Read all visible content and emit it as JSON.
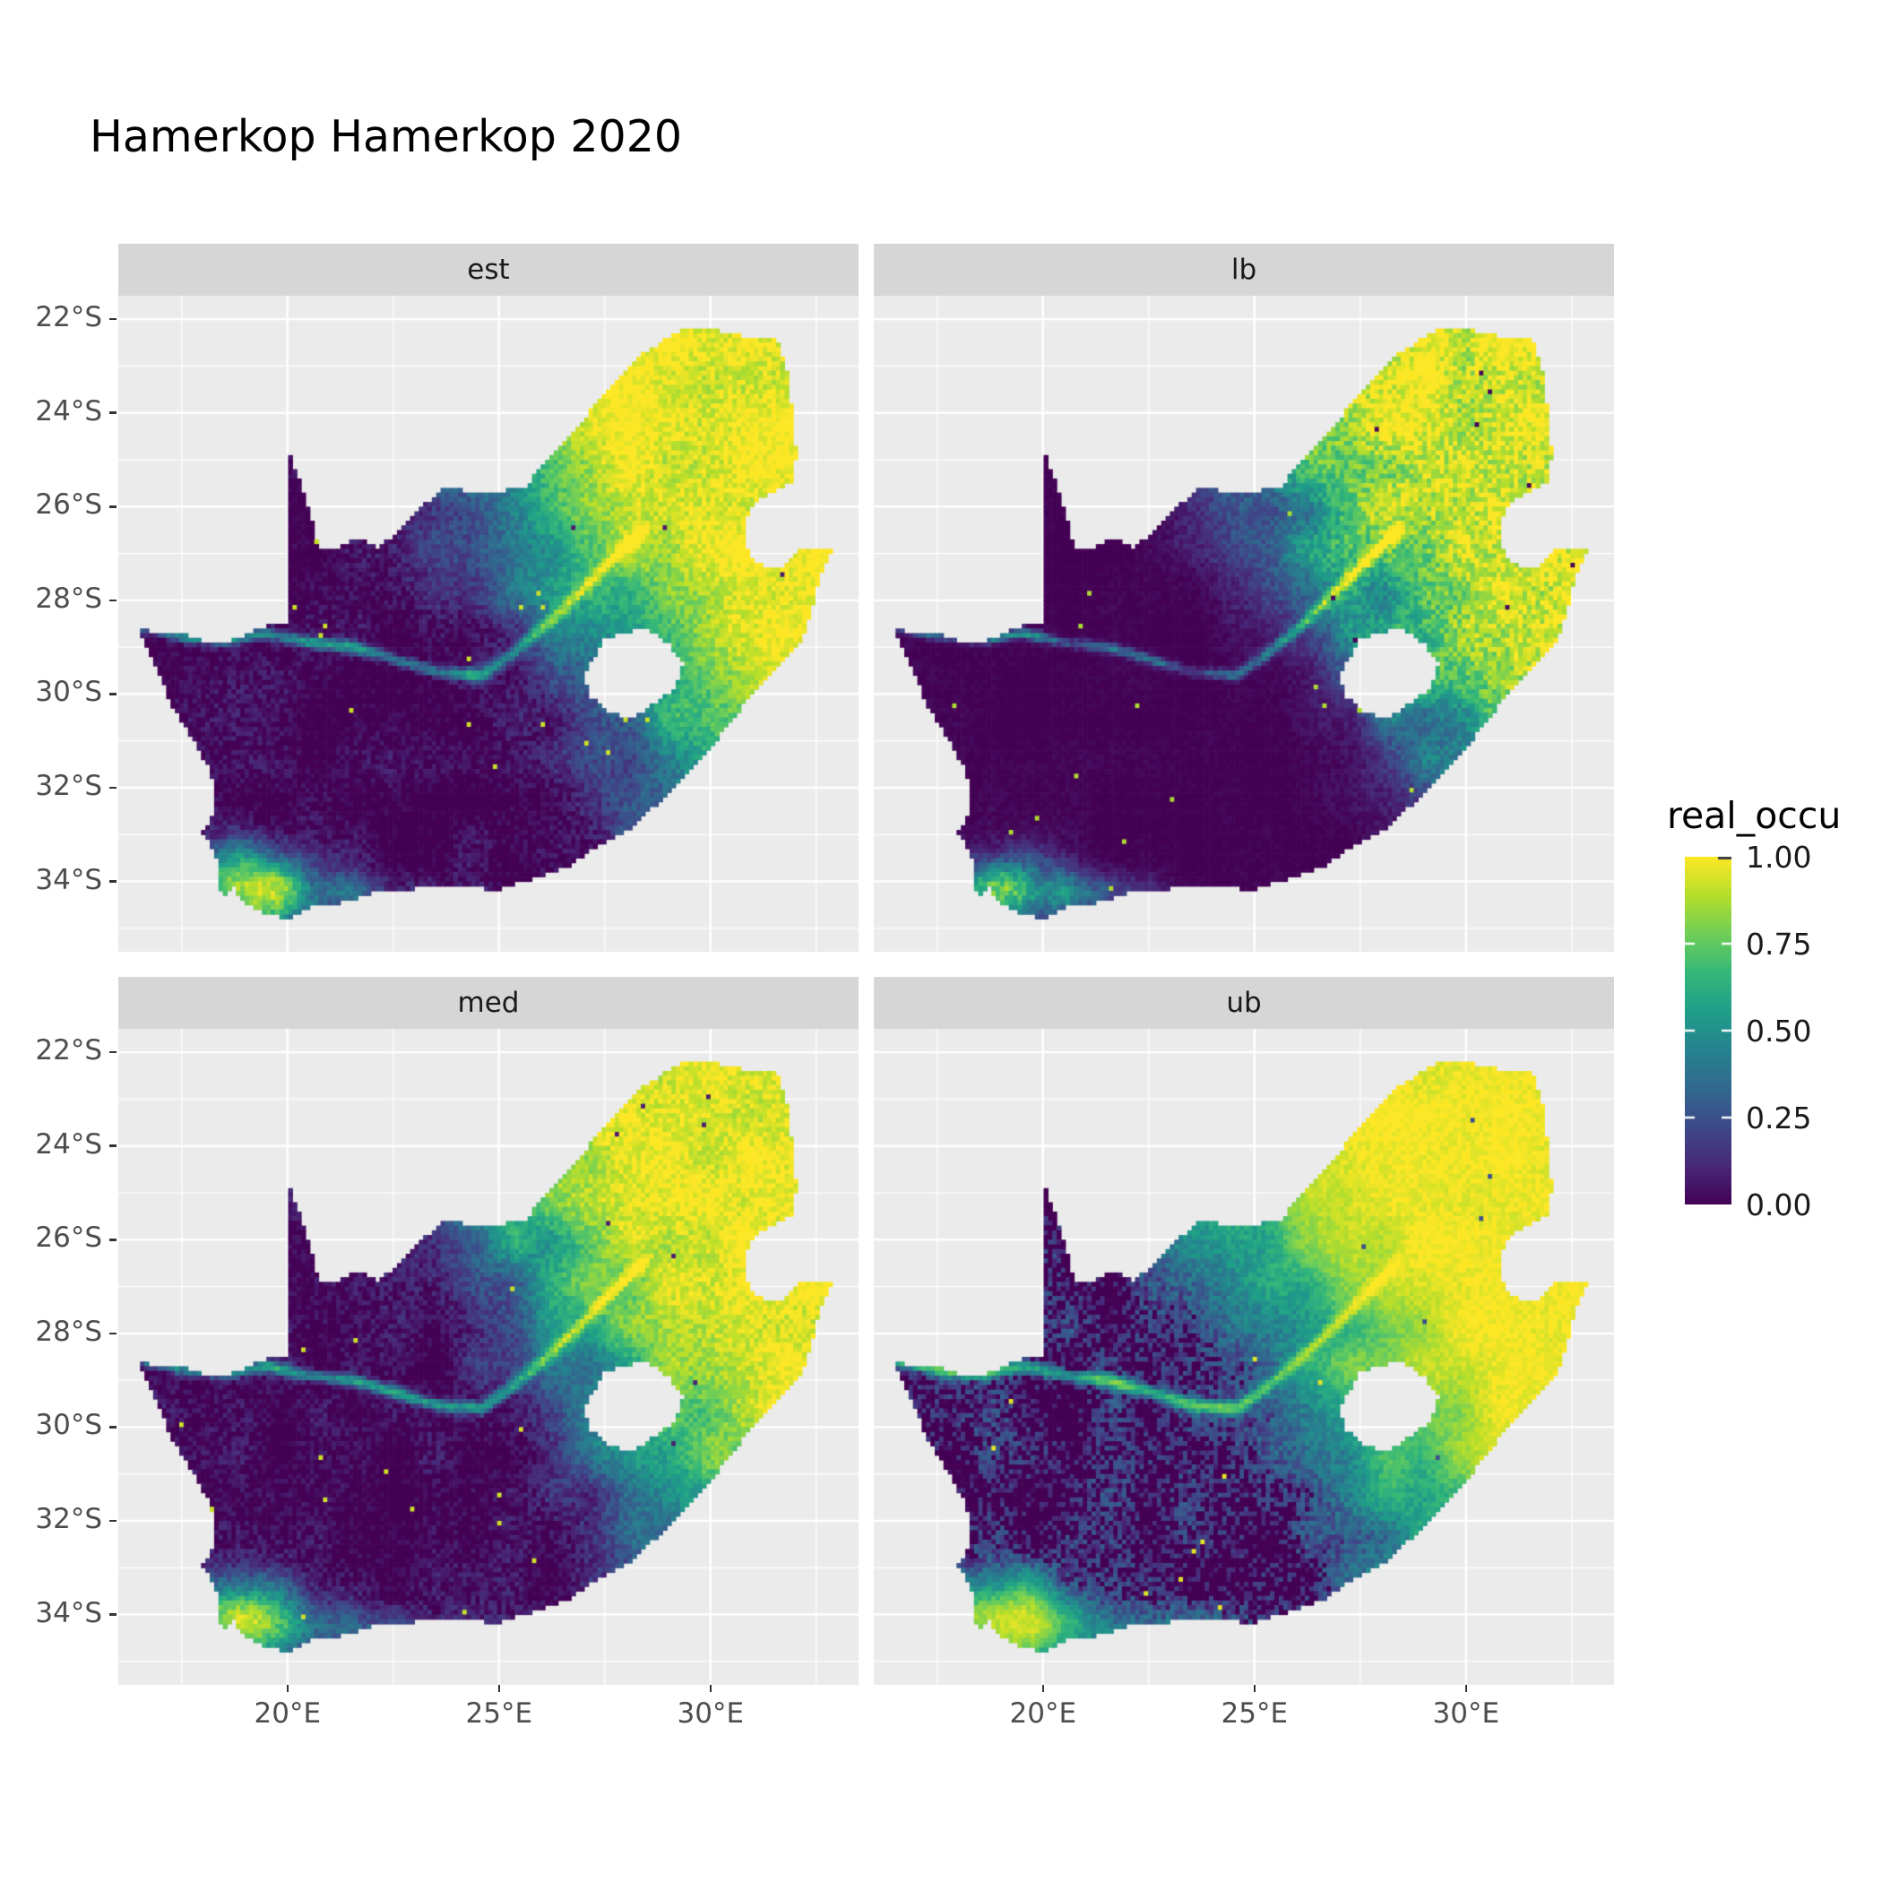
{
  "title": "Hamerkop Hamerkop 2020",
  "facets": [
    {
      "label": "est"
    },
    {
      "label": "lb"
    },
    {
      "label": "med"
    },
    {
      "label": "ub"
    }
  ],
  "axes": {
    "x_tick_labels": [
      "20°E",
      "25°E",
      "30°E"
    ],
    "y_tick_labels": [
      "22°S",
      "24°S",
      "26°S",
      "28°S",
      "30°S",
      "32°S",
      "34°S"
    ]
  },
  "legend": {
    "title": "real_occu",
    "tick_labels": [
      "1.00",
      "0.75",
      "0.50",
      "0.25",
      "0.00"
    ]
  },
  "colors": {
    "panel_bg": "#ebebeb",
    "strip_bg": "#d6d6d6",
    "gridline": "#ffffff",
    "axis_text": "#4d4d4d",
    "strip_text": "#1a1a1a",
    "title_text": "#000000",
    "tick_mark": "#333333"
  },
  "chart_data": {
    "type": "heatmap",
    "title": "Hamerkop Hamerkop 2020",
    "region": "South Africa occupancy raster, 2x2 facet grid (estimate, lower bound, median, upper bound)",
    "facets": [
      "est",
      "lb",
      "med",
      "ub"
    ],
    "x": {
      "label": "",
      "ticks_deg_east": [
        20,
        25,
        30
      ],
      "minor_deg_east": [
        17.5,
        22.5,
        27.5,
        32.5
      ],
      "range_deg_east": [
        16,
        33.5
      ]
    },
    "y": {
      "label": "",
      "ticks_deg_south": [
        22,
        24,
        26,
        28,
        30,
        32,
        34
      ],
      "minor_deg_south": [
        23,
        25,
        27,
        29,
        31,
        33,
        35
      ],
      "range_deg_south": [
        21.5,
        35.5
      ]
    },
    "legend": {
      "title": "real_occu",
      "breaks": [
        1.0,
        0.75,
        0.5,
        0.25,
        0.0
      ],
      "range": [
        0,
        1
      ]
    },
    "colormap": {
      "name": "viridis",
      "stops": [
        [
          0,
          "#440154"
        ],
        [
          0.111,
          "#482878"
        ],
        [
          0.222,
          "#3e4989"
        ],
        [
          0.333,
          "#31688e"
        ],
        [
          0.444,
          "#26828e"
        ],
        [
          0.556,
          "#1f9e89"
        ],
        [
          0.667,
          "#35b779"
        ],
        [
          0.778,
          "#6ece58"
        ],
        [
          0.889,
          "#b5de2b"
        ],
        [
          1,
          "#fde725"
        ]
      ]
    },
    "facet_gamma": {
      "est": 1.0,
      "lb": 1.6,
      "med": 0.95,
      "ub": 0.55
    },
    "pattern_summary": "real_occu near 0 (dark purple) across arid west and Karoo; high 0.8-1.0 (yellow) in northeast lowveld, highveld and along the east coast; bright patch at the southwest Cape and along the south coast; green Orange/Vaal river trace through the dark interior; scattered bright specks; ub facet brightest, lb darkest, est and med intermediate",
    "outline_lonlat": [
      [
        16.45,
        -28.58
      ],
      [
        17.05,
        -28.72
      ],
      [
        17.65,
        -28.74
      ],
      [
        18.05,
        -28.88
      ],
      [
        18.55,
        -28.9
      ],
      [
        19.0,
        -28.74
      ],
      [
        19.55,
        -28.52
      ],
      [
        19.99,
        -28.45
      ],
      [
        19.99,
        -24.77
      ],
      [
        20.25,
        -25.35
      ],
      [
        20.45,
        -25.95
      ],
      [
        20.62,
        -26.45
      ],
      [
        20.72,
        -26.88
      ],
      [
        21.15,
        -26.87
      ],
      [
        21.65,
        -26.68
      ],
      [
        22.15,
        -26.88
      ],
      [
        22.65,
        -26.5
      ],
      [
        23.15,
        -26.0
      ],
      [
        23.8,
        -25.56
      ],
      [
        24.45,
        -25.75
      ],
      [
        25.05,
        -25.67
      ],
      [
        25.62,
        -25.6
      ],
      [
        26.0,
        -25.1
      ],
      [
        26.45,
        -24.65
      ],
      [
        26.85,
        -24.3
      ],
      [
        27.2,
        -23.9
      ],
      [
        27.7,
        -23.35
      ],
      [
        28.25,
        -22.8
      ],
      [
        28.9,
        -22.45
      ],
      [
        29.37,
        -22.18
      ],
      [
        29.95,
        -22.2
      ],
      [
        30.5,
        -22.32
      ],
      [
        31.1,
        -22.4
      ],
      [
        31.56,
        -22.36
      ],
      [
        31.8,
        -23.1
      ],
      [
        31.88,
        -23.7
      ],
      [
        31.98,
        -24.3
      ],
      [
        32.02,
        -24.9
      ],
      [
        31.96,
        -25.43
      ],
      [
        31.35,
        -25.72
      ],
      [
        30.95,
        -26.0
      ],
      [
        30.78,
        -26.5
      ],
      [
        30.9,
        -27.0
      ],
      [
        31.2,
        -27.25
      ],
      [
        31.65,
        -27.32
      ],
      [
        31.97,
        -27.1
      ],
      [
        32.13,
        -26.86
      ],
      [
        32.55,
        -26.86
      ],
      [
        32.89,
        -26.86
      ],
      [
        32.6,
        -27.4
      ],
      [
        32.4,
        -28.15
      ],
      [
        32.25,
        -28.6
      ],
      [
        32.0,
        -29.05
      ],
      [
        31.4,
        -29.6
      ],
      [
        30.85,
        -30.15
      ],
      [
        30.25,
        -30.85
      ],
      [
        29.55,
        -31.6
      ],
      [
        28.85,
        -32.25
      ],
      [
        28.1,
        -32.85
      ],
      [
        27.4,
        -33.2
      ],
      [
        26.6,
        -33.7
      ],
      [
        25.65,
        -33.98
      ],
      [
        24.9,
        -34.2
      ],
      [
        24.1,
        -34.05
      ],
      [
        23.35,
        -34.1
      ],
      [
        22.6,
        -34.2
      ],
      [
        22.1,
        -34.2
      ],
      [
        21.3,
        -34.45
      ],
      [
        20.5,
        -34.55
      ],
      [
        20.0,
        -34.82
      ],
      [
        19.35,
        -34.62
      ],
      [
        18.85,
        -34.4
      ],
      [
        18.78,
        -34.08
      ],
      [
        18.46,
        -34.34
      ],
      [
        18.35,
        -33.95
      ],
      [
        18.42,
        -33.7
      ],
      [
        18.18,
        -33.25
      ],
      [
        17.98,
        -32.95
      ],
      [
        18.25,
        -32.55
      ],
      [
        18.3,
        -32.0
      ],
      [
        18.1,
        -31.5
      ],
      [
        17.65,
        -30.8
      ],
      [
        17.25,
        -30.25
      ],
      [
        16.9,
        -29.4
      ]
    ],
    "lesotho_lonlat": [
      [
        27.02,
        -29.6
      ],
      [
        27.45,
        -28.85
      ],
      [
        27.9,
        -28.68
      ],
      [
        28.45,
        -28.6
      ],
      [
        29.0,
        -28.9
      ],
      [
        29.35,
        -29.35
      ],
      [
        29.15,
        -29.9
      ],
      [
        28.6,
        -30.25
      ],
      [
        28.05,
        -30.55
      ],
      [
        27.45,
        -30.3
      ],
      [
        27.1,
        -30.0
      ]
    ],
    "river_lonlat": [
      [
        16.55,
        -28.55
      ],
      [
        17.6,
        -28.8
      ],
      [
        18.6,
        -28.85
      ],
      [
        19.5,
        -28.7
      ],
      [
        20.5,
        -28.9
      ],
      [
        21.5,
        -29.0
      ],
      [
        22.5,
        -29.25
      ],
      [
        23.6,
        -29.55
      ],
      [
        24.6,
        -29.6
      ],
      [
        25.3,
        -29.15
      ],
      [
        26.1,
        -28.55
      ],
      [
        26.9,
        -27.85
      ],
      [
        27.7,
        -27.1
      ],
      [
        28.4,
        -26.5
      ]
    ]
  }
}
